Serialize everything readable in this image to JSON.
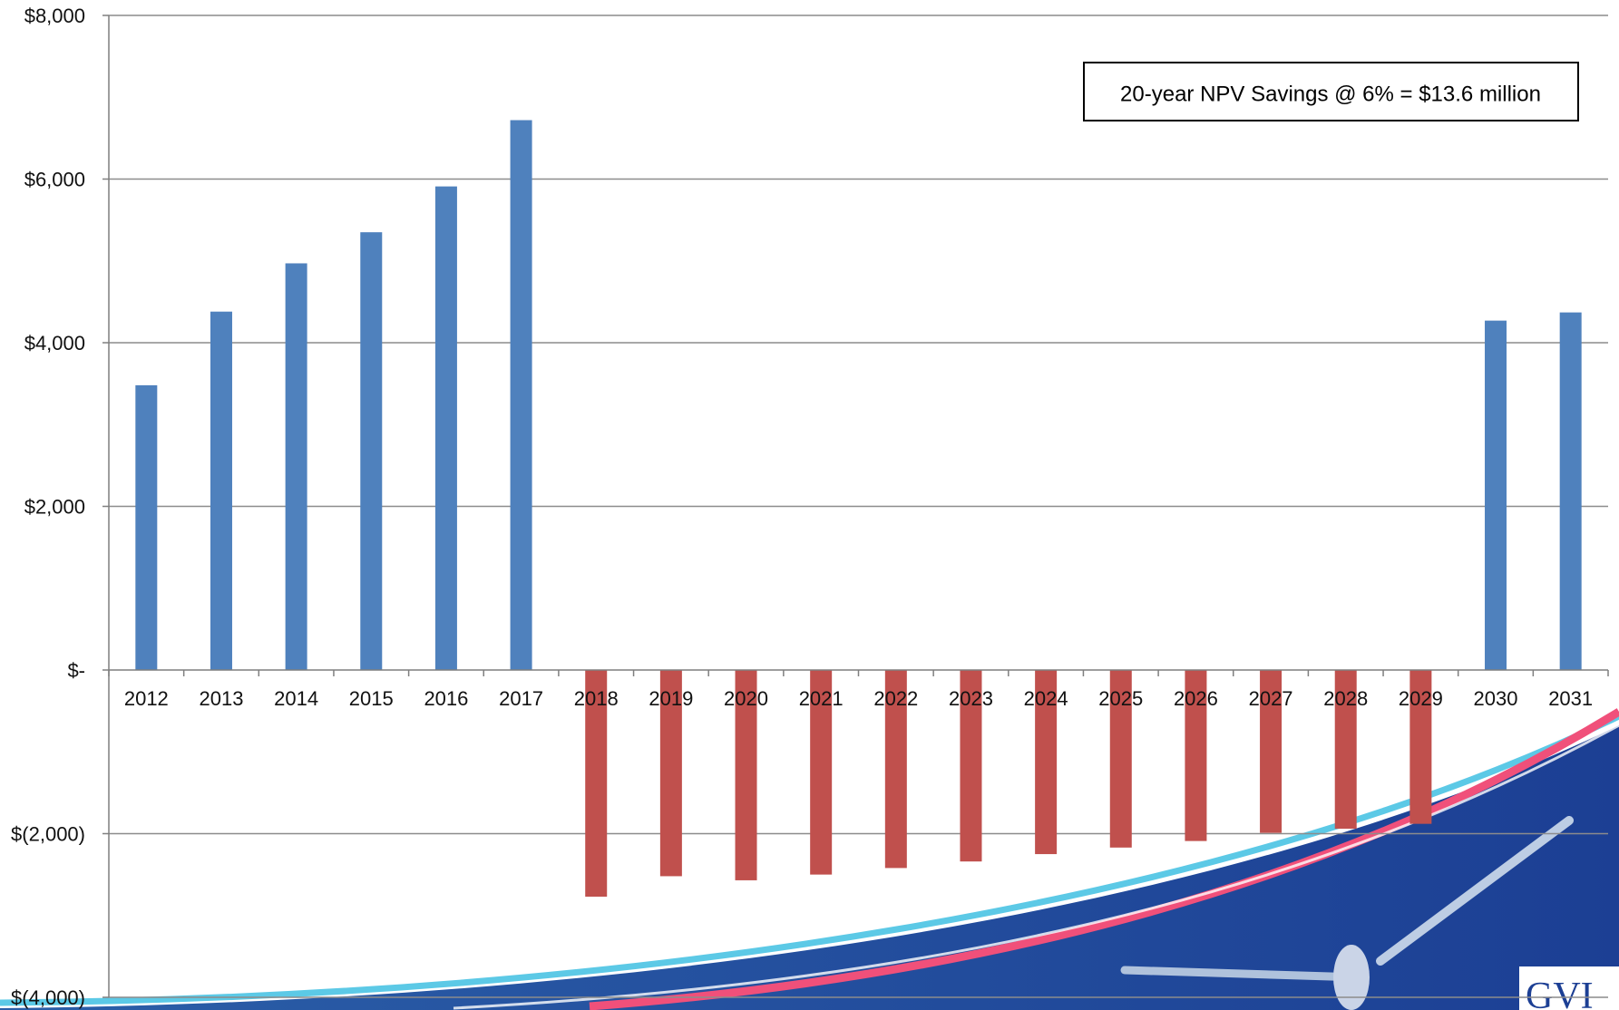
{
  "chart_data": {
    "type": "bar",
    "title": "",
    "xlabel": "",
    "ylabel": "",
    "categories": [
      "2012",
      "2013",
      "2014",
      "2015",
      "2016",
      "2017",
      "2018",
      "2019",
      "2020",
      "2021",
      "2022",
      "2023",
      "2024",
      "2025",
      "2026",
      "2027",
      "2028",
      "2029",
      "2030",
      "2031"
    ],
    "values": [
      3480,
      4380,
      4970,
      5350,
      5910,
      6720,
      -2770,
      -2520,
      -2570,
      -2500,
      -2420,
      -2340,
      -2250,
      -2170,
      -2090,
      -1990,
      -1940,
      -1880,
      4270,
      4370
    ],
    "ylim": [
      -4000,
      8000
    ],
    "yticks": [
      8000,
      6000,
      4000,
      2000,
      0,
      -2000,
      -4000
    ],
    "ytick_labels": [
      "$8,000",
      "$6,000",
      "$4,000",
      "$2,000",
      "$-",
      "$(2,000)",
      "$(4,000)"
    ],
    "grid": true,
    "colors": {
      "positive": "#4F81BD",
      "negative": "#C0504D",
      "gridline": "#8C8C8C",
      "axis": "#7F7F7F"
    },
    "annotations": [
      {
        "text": "20-year NPV Savings @ 6% = $13.6 million"
      }
    ]
  },
  "decoration": {
    "swoosh_colors": [
      "#1C3F94",
      "#2E6DB8",
      "#5CC9E6",
      "#F0507A"
    ],
    "logo_text": "GVI"
  }
}
